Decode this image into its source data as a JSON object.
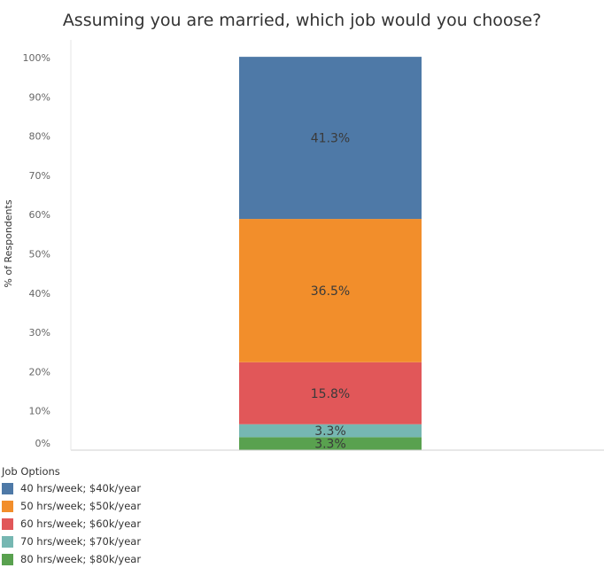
{
  "chart_data": {
    "type": "bar",
    "stacked": true,
    "title": "Assuming you are married, which job would you choose?",
    "xlabel": "",
    "ylabel": "% of Respondents",
    "ylim": [
      0,
      100
    ],
    "y_ticks": [
      "0%",
      "10%",
      "20%",
      "30%",
      "40%",
      "50%",
      "60%",
      "70%",
      "80%",
      "90%",
      "100%"
    ],
    "grid": false,
    "legend_title": "Job Options",
    "legend_position": "bottom-left",
    "series": [
      {
        "name": "40 hrs/week; $40k/year",
        "value": 41.3,
        "label": "41.3%",
        "color": "#4e79a7"
      },
      {
        "name": "50 hrs/week; $50k/year",
        "value": 36.5,
        "label": "36.5%",
        "color": "#f28e2b"
      },
      {
        "name": "60 hrs/week; $60k/year",
        "value": 15.8,
        "label": "15.8%",
        "color": "#e15759"
      },
      {
        "name": "70 hrs/week; $70k/year",
        "value": 3.3,
        "label": "3.3%",
        "color": "#76b7b2"
      },
      {
        "name": "80 hrs/week; $80k/year",
        "value": 3.3,
        "label": "3.3%",
        "color": "#59a14f"
      }
    ]
  }
}
